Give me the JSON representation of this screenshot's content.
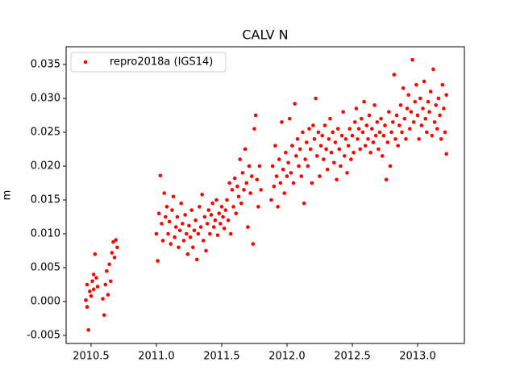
{
  "chart_data": {
    "type": "scatter",
    "title": "CALV N",
    "y_label": "m",
    "xlim": [
      2010.309,
      2013.358
    ],
    "ylim": [
      -0.00619,
      0.03762
    ],
    "xticks": [
      2010.5,
      {
        "value": 2011.0,
        "label": "2011.0"
      },
      2011.5,
      {
        "value": 2012.0,
        "label": "2012.0"
      },
      2012.5,
      {
        "value": 2013.0,
        "label": "2013.0"
      }
    ],
    "yticks": [
      -0.005,
      {
        "value": 0,
        "label": "0.000"
      },
      0.005,
      {
        "value": 0.01,
        "label": "0.010"
      },
      0.015,
      {
        "value": 0.02,
        "label": "0.020"
      },
      0.025,
      {
        "value": 0.03,
        "label": "0.030"
      },
      0.035
    ],
    "legend": "upper left",
    "x": [
      2010.46,
      2010.47,
      2010.48,
      2010.49,
      2010.5,
      2010.51,
      2010.52,
      2010.53,
      2010.54,
      2010.55,
      2010.59,
      2010.6,
      2010.61,
      2010.62,
      2010.63,
      2010.64,
      2010.65,
      2010.66,
      2010.67,
      2010.68,
      2010.69,
      2010.7,
      2010.47,
      2010.52,
      2011.0,
      2011.01,
      2011.02,
      2011.03,
      2011.04,
      2011.05,
      2011.06,
      2011.07,
      2011.08,
      2011.09,
      2011.1,
      2011.11,
      2011.12,
      2011.13,
      2011.14,
      2011.15,
      2011.16,
      2011.17,
      2011.18,
      2011.19,
      2011.2,
      2011.21,
      2011.22,
      2011.23,
      2011.24,
      2011.25,
      2011.26,
      2011.27,
      2011.28,
      2011.29,
      2011.3,
      2011.31,
      2011.32,
      2011.33,
      2011.34,
      2011.35,
      2011.36,
      2011.37,
      2011.38,
      2011.39,
      2011.4,
      2011.41,
      2011.42,
      2011.43,
      2011.44,
      2011.45,
      2011.46,
      2011.47,
      2011.48,
      2011.49,
      2011.5,
      2011.51,
      2011.52,
      2011.53,
      2011.54,
      2011.55,
      2011.56,
      2011.57,
      2011.58,
      2011.59,
      2011.6,
      2011.61,
      2011.62,
      2011.63,
      2011.64,
      2011.65,
      2011.66,
      2011.67,
      2011.68,
      2011.69,
      2011.7,
      2011.71,
      2011.72,
      2011.73,
      2011.74,
      2011.75,
      2011.76,
      2011.77,
      2011.78,
      2011.79,
      2011.8,
      2011.88,
      2011.89,
      2011.9,
      2011.91,
      2011.92,
      2011.93,
      2011.94,
      2011.95,
      2011.96,
      2011.97,
      2011.98,
      2011.99,
      2012.0,
      2012.01,
      2012.02,
      2012.03,
      2012.04,
      2012.05,
      2012.06,
      2012.07,
      2012.08,
      2012.09,
      2012.1,
      2012.11,
      2012.12,
      2012.13,
      2012.14,
      2012.15,
      2012.16,
      2012.17,
      2012.18,
      2012.19,
      2012.2,
      2012.21,
      2012.22,
      2012.23,
      2012.24,
      2012.25,
      2012.26,
      2012.27,
      2012.28,
      2012.29,
      2012.3,
      2012.31,
      2012.32,
      2012.33,
      2012.34,
      2012.35,
      2012.36,
      2012.37,
      2012.38,
      2012.39,
      2012.4,
      2012.41,
      2012.42,
      2012.43,
      2012.44,
      2012.45,
      2012.46,
      2012.47,
      2012.48,
      2012.49,
      2012.5,
      2012.51,
      2012.52,
      2012.53,
      2012.54,
      2012.55,
      2012.56,
      2012.57,
      2012.58,
      2012.59,
      2012.6,
      2012.61,
      2012.62,
      2012.63,
      2012.64,
      2012.65,
      2012.66,
      2012.67,
      2012.68,
      2012.69,
      2012.7,
      2012.71,
      2012.72,
      2012.73,
      2012.74,
      2012.75,
      2012.76,
      2012.77,
      2012.78,
      2012.79,
      2012.8,
      2012.81,
      2012.82,
      2012.83,
      2012.84,
      2012.85,
      2012.86,
      2012.87,
      2012.88,
      2012.89,
      2012.9,
      2012.91,
      2012.92,
      2012.93,
      2012.94,
      2012.95,
      2012.96,
      2012.97,
      2012.98,
      2012.99,
      2013.0,
      2013.01,
      2013.02,
      2013.03,
      2013.04,
      2013.05,
      2013.06,
      2013.07,
      2013.08,
      2013.09,
      2013.1,
      2013.11,
      2013.12,
      2013.13,
      2013.14,
      2013.15,
      2013.16,
      2013.17,
      2013.18,
      2013.19,
      2013.2,
      2013.21,
      2013.22,
      2013.22
    ],
    "series": [
      {
        "name": "repro2018a (IGS14)",
        "color": "#ff0000",
        "values": [
          0.0002,
          0.0025,
          -0.0042,
          0.0015,
          0.0008,
          0.003,
          0.0018,
          0.007,
          0.0035,
          0.0022,
          0.0004,
          -0.002,
          0.0025,
          0.0045,
          0.001,
          0.0055,
          0.003,
          0.0072,
          0.0088,
          0.0065,
          0.0091,
          0.008,
          -0.0008,
          0.004,
          0.01,
          0.006,
          0.013,
          0.0186,
          0.0115,
          0.009,
          0.016,
          0.0125,
          0.014,
          0.01,
          0.0118,
          0.0085,
          0.0135,
          0.0155,
          0.0095,
          0.011,
          0.0125,
          0.008,
          0.0105,
          0.0145,
          0.0115,
          0.009,
          0.0128,
          0.01,
          0.007,
          0.0112,
          0.0095,
          0.0135,
          0.008,
          0.0105,
          0.012,
          0.0062,
          0.01,
          0.014,
          0.011,
          0.0158,
          0.009,
          0.0125,
          0.0075,
          0.0115,
          0.0135,
          0.01,
          0.0128,
          0.0145,
          0.011,
          0.012,
          0.015,
          0.0098,
          0.013,
          0.0115,
          0.014,
          0.0125,
          0.0108,
          0.0135,
          0.015,
          0.012,
          0.0175,
          0.01,
          0.0165,
          0.014,
          0.0182,
          0.013,
          0.017,
          0.0155,
          0.021,
          0.0145,
          0.019,
          0.0165,
          0.0225,
          0.0175,
          0.011,
          0.02,
          0.016,
          0.0185,
          0.0085,
          0.0255,
          0.0275,
          0.018,
          0.014,
          0.02,
          0.0165,
          0.015,
          0.02,
          0.017,
          0.023,
          0.0185,
          0.014,
          0.021,
          0.0175,
          0.0265,
          0.0195,
          0.016,
          0.022,
          0.0185,
          0.0205,
          0.027,
          0.019,
          0.023,
          0.0175,
          0.0292,
          0.0215,
          0.024,
          0.02,
          0.0225,
          0.0185,
          0.025,
          0.0145,
          0.021,
          0.0235,
          0.02,
          0.0255,
          0.0225,
          0.0175,
          0.026,
          0.024,
          0.03,
          0.0215,
          0.025,
          0.0185,
          0.023,
          0.0245,
          0.021,
          0.026,
          0.0225,
          0.0195,
          0.024,
          0.027,
          0.022,
          0.025,
          0.0205,
          0.0235,
          0.018,
          0.0255,
          0.0225,
          0.02,
          0.0245,
          0.028,
          0.0215,
          0.024,
          0.019,
          0.023,
          0.0255,
          0.021,
          0.0245,
          0.022,
          0.0265,
          0.0285,
          0.024,
          0.0255,
          0.0225,
          0.027,
          0.025,
          0.0295,
          0.023,
          0.026,
          0.024,
          0.0275,
          0.022,
          0.0255,
          0.0235,
          0.029,
          0.0245,
          0.0265,
          0.0225,
          0.025,
          0.027,
          0.0215,
          0.0245,
          0.026,
          0.018,
          0.0235,
          0.028,
          0.02,
          0.025,
          0.0265,
          0.0335,
          0.024,
          0.0275,
          0.023,
          0.026,
          0.029,
          0.025,
          0.0315,
          0.027,
          0.024,
          0.0285,
          0.0305,
          0.0255,
          0.028,
          0.0357,
          0.0265,
          0.0295,
          0.032,
          0.0275,
          0.024,
          0.03,
          0.026,
          0.0285,
          0.0325,
          0.027,
          0.025,
          0.0295,
          0.028,
          0.031,
          0.0245,
          0.0343,
          0.0265,
          0.029,
          0.0255,
          0.03,
          0.0275,
          0.024,
          0.032,
          0.0285,
          0.025,
          0.0218,
          0.0305
        ]
      }
    ]
  }
}
